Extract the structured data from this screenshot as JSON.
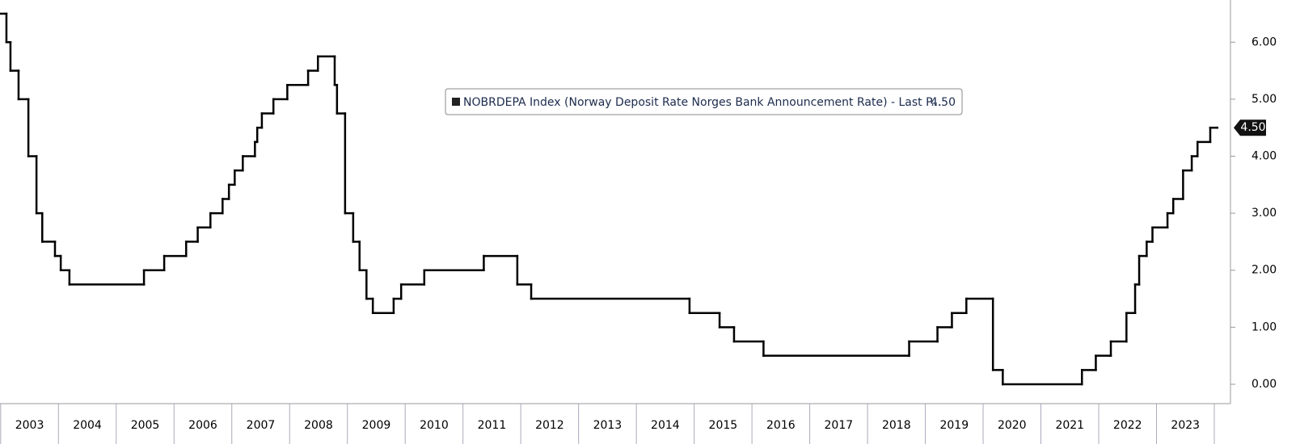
{
  "chart_data": {
    "type": "step",
    "xlim": [
      2003,
      2024.28
    ],
    "xticks": [
      2003,
      2004,
      2005,
      2006,
      2007,
      2008,
      2009,
      2010,
      2011,
      2012,
      2013,
      2014,
      2015,
      2016,
      2017,
      2018,
      2019,
      2020,
      2021,
      2022,
      2023
    ],
    "ylim": [
      -0.34,
      6.74
    ],
    "yticks": [
      {
        "value": 0,
        "label": "0.00"
      },
      {
        "value": 1,
        "label": "1.00"
      },
      {
        "value": 2,
        "label": "2.00"
      },
      {
        "value": 3,
        "label": "3.00"
      },
      {
        "value": 4,
        "label": "4.00"
      },
      {
        "value": 5,
        "label": "5.00"
      },
      {
        "value": 6,
        "label": "6.00"
      }
    ],
    "legend": "top-center",
    "series": [
      {
        "name": "NOBRDEPA Index (Norway Deposit Rate Norges Bank Announcement Rate) - Last P...",
        "color": "#000000",
        "x": [
          2003.0,
          2003.1,
          2003.17,
          2003.31,
          2003.48,
          2003.62,
          2003.72,
          2003.94,
          2004.04,
          2004.19,
          2005.48,
          2005.83,
          2006.21,
          2006.41,
          2006.63,
          2006.84,
          2006.95,
          2007.05,
          2007.19,
          2007.4,
          2007.44,
          2007.52,
          2007.72,
          2007.96,
          2008.32,
          2008.49,
          2008.78,
          2008.82,
          2008.96,
          2009.1,
          2009.21,
          2009.33,
          2009.44,
          2009.8,
          2009.93,
          2010.33,
          2011.36,
          2011.94,
          2012.18,
          2014.92,
          2015.44,
          2015.69,
          2016.2,
          2018.72,
          2019.21,
          2019.46,
          2019.71,
          2020.17,
          2020.34,
          2021.71,
          2021.95,
          2022.21,
          2022.48,
          2022.63,
          2022.7,
          2022.83,
          2022.93,
          2023.19,
          2023.29,
          2023.46,
          2023.61,
          2023.71,
          2023.93,
          2024.05
        ],
        "values": [
          6.5,
          6.0,
          5.5,
          5.0,
          4.0,
          3.0,
          2.5,
          2.25,
          2.0,
          1.75,
          2.0,
          2.25,
          2.5,
          2.75,
          3.0,
          3.25,
          3.5,
          3.75,
          4.0,
          4.25,
          4.5,
          4.75,
          5.0,
          5.25,
          5.5,
          5.75,
          5.25,
          4.75,
          3.0,
          2.5,
          2.0,
          1.5,
          1.25,
          1.5,
          1.75,
          2.0,
          2.25,
          1.75,
          1.5,
          1.25,
          1.0,
          0.75,
          0.5,
          0.75,
          1.0,
          1.25,
          1.5,
          0.25,
          0,
          0.25,
          0.5,
          0.75,
          1.25,
          1.75,
          2.25,
          2.5,
          2.75,
          3.0,
          3.25,
          3.75,
          4.0,
          4.25,
          4.5,
          4.5
        ],
        "value_labels": [
          null,
          null,
          null,
          null,
          null,
          null,
          null,
          null,
          null,
          null,
          null,
          null,
          null,
          null,
          null,
          null,
          null,
          null,
          null,
          null,
          null,
          null,
          null,
          null,
          null,
          null,
          null,
          null,
          null,
          null,
          null,
          null,
          null,
          null,
          null,
          null,
          null,
          null,
          null,
          null,
          null,
          null,
          null,
          null,
          null,
          null,
          null,
          null,
          null,
          null,
          null,
          null,
          null,
          null,
          null,
          null,
          null,
          null,
          null,
          null,
          null,
          null,
          null,
          "4.50"
        ]
      }
    ]
  }
}
